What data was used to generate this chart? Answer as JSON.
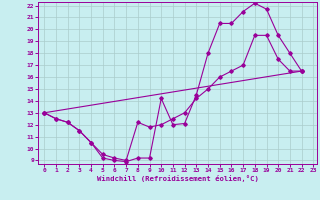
{
  "xlabel": "Windchill (Refroidissement éolien,°C)",
  "bg_color": "#c8eef0",
  "line_color": "#990099",
  "grid_color": "#aacccc",
  "xlim": [
    0,
    23
  ],
  "ylim": [
    9,
    22
  ],
  "xticks": [
    0,
    1,
    2,
    3,
    4,
    5,
    6,
    7,
    8,
    9,
    10,
    11,
    12,
    13,
    14,
    15,
    16,
    17,
    18,
    19,
    20,
    21,
    22,
    23
  ],
  "yticks": [
    9,
    10,
    11,
    12,
    13,
    14,
    15,
    16,
    17,
    18,
    19,
    20,
    21,
    22
  ],
  "line1_x": [
    0,
    1,
    2,
    3,
    4,
    5,
    6,
    7,
    8,
    9,
    10,
    11,
    12,
    13,
    14,
    15,
    16,
    17,
    18,
    19,
    20,
    21,
    22
  ],
  "line1_y": [
    13,
    12.5,
    12.2,
    11.5,
    10.5,
    9.2,
    9.0,
    8.9,
    9.2,
    9.2,
    14.2,
    12.0,
    12.1,
    14.5,
    18.0,
    20.5,
    20.5,
    21.5,
    22.2,
    21.7,
    19.5,
    18.0,
    16.5
  ],
  "line2_x": [
    0,
    1,
    2,
    3,
    4,
    5,
    6,
    7,
    8,
    9,
    10,
    11,
    12,
    13,
    14,
    15,
    16,
    17,
    18,
    19,
    20,
    21,
    22
  ],
  "line2_y": [
    13,
    12.5,
    12.2,
    11.5,
    10.5,
    9.5,
    9.2,
    9.0,
    12.2,
    11.8,
    12.0,
    12.5,
    13.0,
    14.2,
    15.0,
    16.0,
    16.5,
    17.0,
    19.5,
    19.5,
    17.5,
    16.5,
    16.5
  ],
  "line3_x": [
    0,
    22
  ],
  "line3_y": [
    13,
    16.5
  ]
}
